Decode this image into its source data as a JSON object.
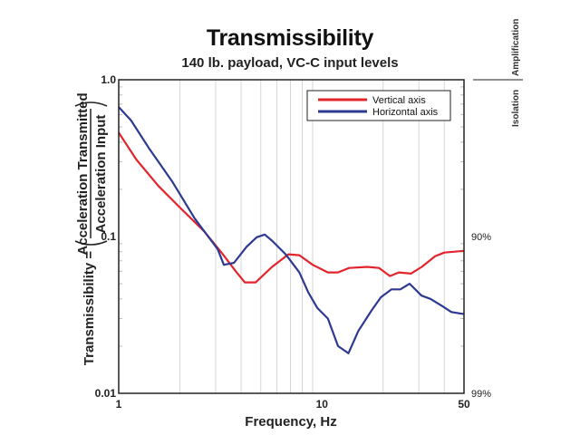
{
  "chart_data": {
    "type": "line",
    "title": "Transmissibility",
    "subtitle": "140 lb. payload, VC-C input levels",
    "xlabel": "Frequency, Hz",
    "ylabel": {
      "prefix": "Transmissibility =",
      "numerator": "Acceleration Transmitted",
      "denominator": "Acceleration Input"
    },
    "xscale": "log",
    "yscale": "log",
    "xlim": [
      1,
      50
    ],
    "ylim": [
      0.01,
      1.0
    ],
    "xticks": [
      {
        "value": 1,
        "label": "1"
      },
      {
        "value": 10,
        "label": "10"
      },
      {
        "value": 50,
        "label": "50"
      }
    ],
    "yticks": [
      {
        "value": 1.0,
        "label": "1.0"
      },
      {
        "value": 0.1,
        "label": "0.1"
      },
      {
        "value": 0.01,
        "label": "0.01"
      }
    ],
    "right_ticks": [
      {
        "value": 0.1,
        "label": "90%"
      },
      {
        "value": 0.01,
        "label": "99%"
      }
    ],
    "right_axis_labels": {
      "upper": "Amplification",
      "lower": "Isolation"
    },
    "grid": "vertical minor log gridlines",
    "legend_position": "top-right",
    "series": [
      {
        "name": "Vertical axis",
        "color": "#e2242c",
        "x": [
          1,
          1.22,
          1.57,
          2.03,
          2.63,
          3.23,
          3.77,
          4.17,
          4.72,
          5.68,
          6.84,
          7.74,
          9.0,
          10.7,
          12.0,
          13.6,
          16.7,
          19.1,
          21.6,
          23.9,
          27.4,
          31.0,
          36.1,
          40.0,
          50
        ],
        "y": [
          0.46,
          0.31,
          0.21,
          0.15,
          0.108,
          0.078,
          0.06,
          0.051,
          0.051,
          0.064,
          0.077,
          0.076,
          0.066,
          0.059,
          0.059,
          0.063,
          0.064,
          0.063,
          0.056,
          0.059,
          0.058,
          0.064,
          0.075,
          0.079,
          0.081
        ]
      },
      {
        "name": "Horizontal axis",
        "color": "#2e3a91",
        "x": [
          1,
          1.15,
          1.42,
          1.83,
          2.37,
          3.07,
          3.29,
          3.69,
          4.26,
          4.77,
          5.23,
          5.68,
          6.63,
          7.74,
          8.57,
          9.49,
          10.7,
          12.0,
          13.5,
          15.1,
          17.6,
          19.5,
          22.0,
          24.3,
          27.0,
          30.9,
          34.2,
          39.1,
          43.3,
          50
        ],
        "y": [
          0.67,
          0.55,
          0.36,
          0.225,
          0.13,
          0.083,
          0.066,
          0.068,
          0.086,
          0.099,
          0.103,
          0.094,
          0.077,
          0.059,
          0.044,
          0.035,
          0.03,
          0.02,
          0.018,
          0.025,
          0.034,
          0.041,
          0.046,
          0.046,
          0.05,
          0.042,
          0.04,
          0.036,
          0.033,
          0.032
        ]
      }
    ]
  }
}
